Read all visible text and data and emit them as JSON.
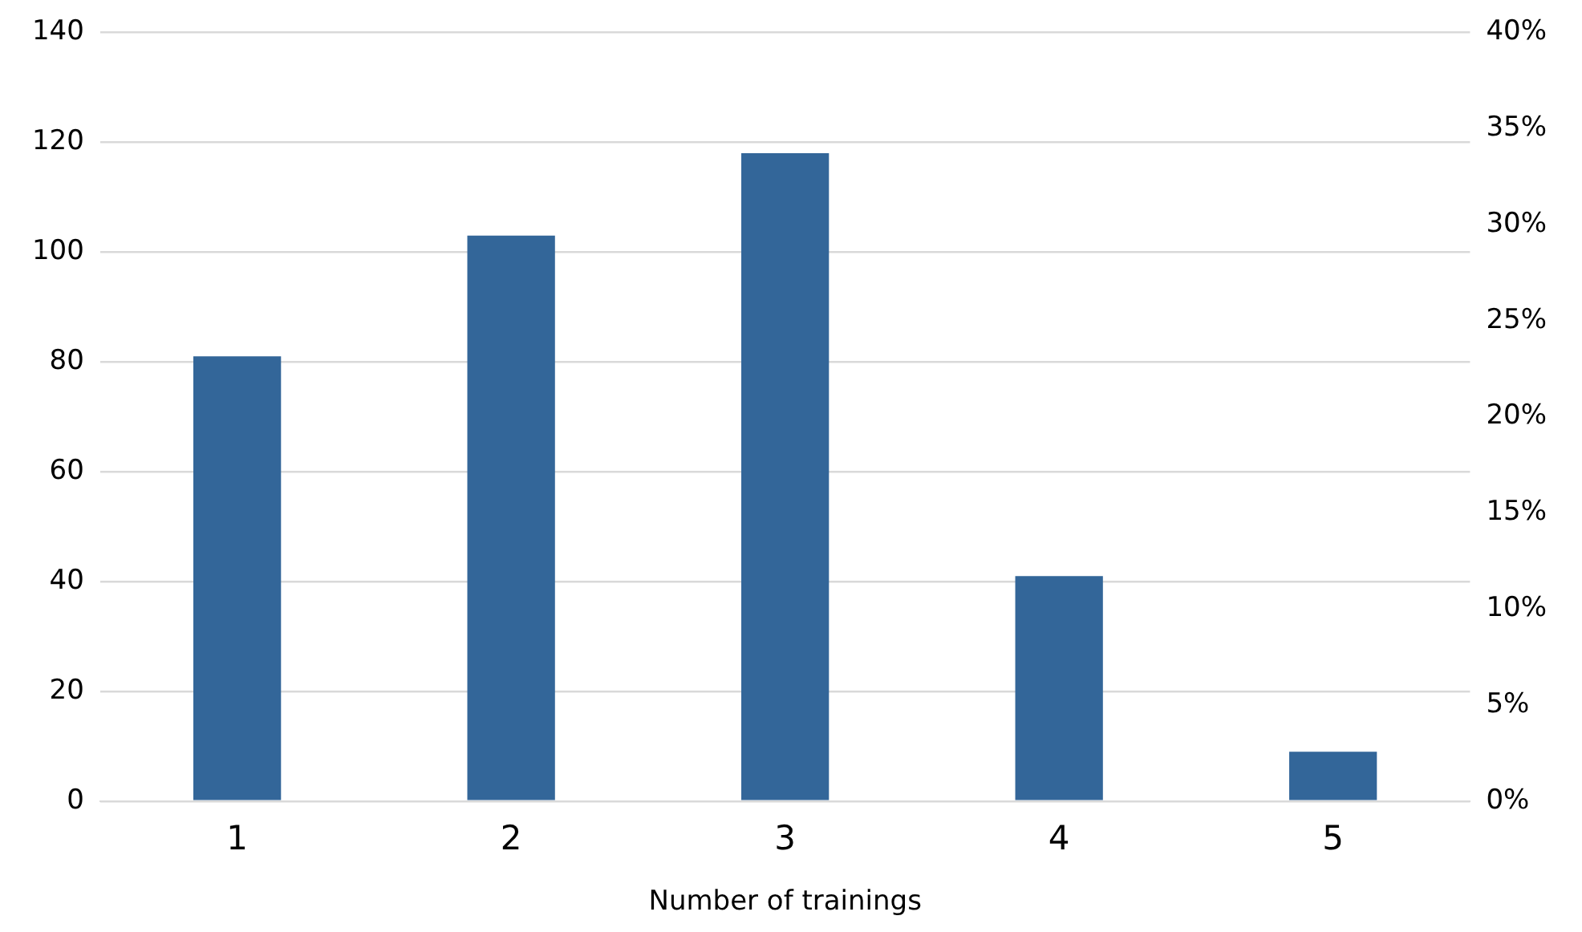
{
  "chart_data": {
    "type": "bar",
    "xlabel": "Number of trainings",
    "categories": [
      "1",
      "2",
      "3",
      "4",
      "5"
    ],
    "series": [
      {
        "color": "#336699",
        "values": [
          81,
          103,
          118,
          41,
          9
        ]
      }
    ],
    "ylim": [
      0,
      140
    ],
    "yticks": [
      0,
      20,
      40,
      60,
      80,
      100,
      120,
      140
    ],
    "y2lim": [
      0,
      40
    ],
    "y2ticks": [
      {
        "value": 0,
        "label": "0%"
      },
      {
        "value": 5,
        "label": "5%"
      },
      {
        "value": 10,
        "label": "10%"
      },
      {
        "value": 15,
        "label": "15%"
      },
      {
        "value": 20,
        "label": "20%"
      },
      {
        "value": 25,
        "label": "25%"
      },
      {
        "value": 30,
        "label": "30%"
      },
      {
        "value": 35,
        "label": "35%"
      },
      {
        "value": 40,
        "label": "40%"
      }
    ],
    "grid": "y",
    "legend": false
  }
}
